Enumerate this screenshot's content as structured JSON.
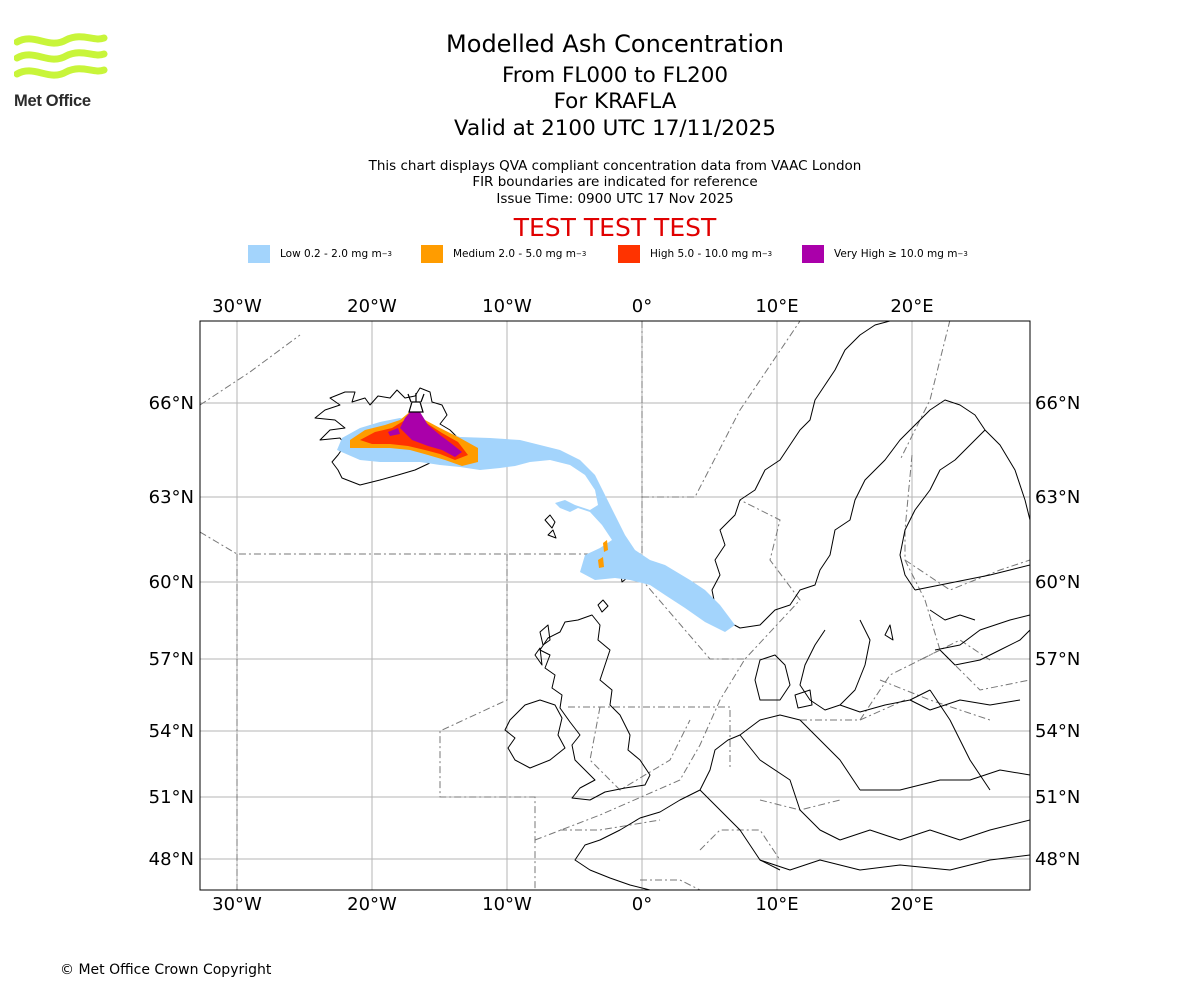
{
  "header": {
    "logo_text": "Met Office",
    "title": "Modelled Ash Concentration",
    "level_range": "From FL000 to FL200",
    "volcano": "For KRAFLA",
    "valid_time": "Valid at 2100 UTC 17/11/2025",
    "subtitle_1": "This chart displays QVA compliant concentration data from VAAC London",
    "subtitle_2": "FIR boundaries are indicated for reference",
    "issue_time": "Issue Time: 0900 UTC 17 Nov 2025",
    "test_banner": "TEST TEST TEST"
  },
  "legend": [
    {
      "label": "Low 0.2 - 2.0 mg m",
      "exp": "−3",
      "color": "#a3d4fc"
    },
    {
      "label": "Medium 2.0 - 5.0 mg m",
      "exp": "−3",
      "color": "#ff9c00"
    },
    {
      "label": "High 5.0 - 10.0 mg m",
      "exp": "−3",
      "color": "#ff3300"
    },
    {
      "label": "Very High ≥ 10.0 mg m",
      "exp": "−3",
      "color": "#aa00aa"
    }
  ],
  "map": {
    "longitude_labels": [
      "30°W",
      "20°W",
      "10°W",
      "0°",
      "10°E",
      "20°E"
    ],
    "latitude_labels": [
      "66°N",
      "63°N",
      "60°N",
      "57°N",
      "54°N",
      "51°N",
      "48°N"
    ],
    "volcano_marker": "volcano-icon",
    "colors": {
      "low": "#a3d4fc",
      "medium": "#ff9c00",
      "high": "#ff3300",
      "very_high": "#aa00aa"
    }
  },
  "footer": {
    "copyright": "© Met Office Crown Copyright"
  }
}
